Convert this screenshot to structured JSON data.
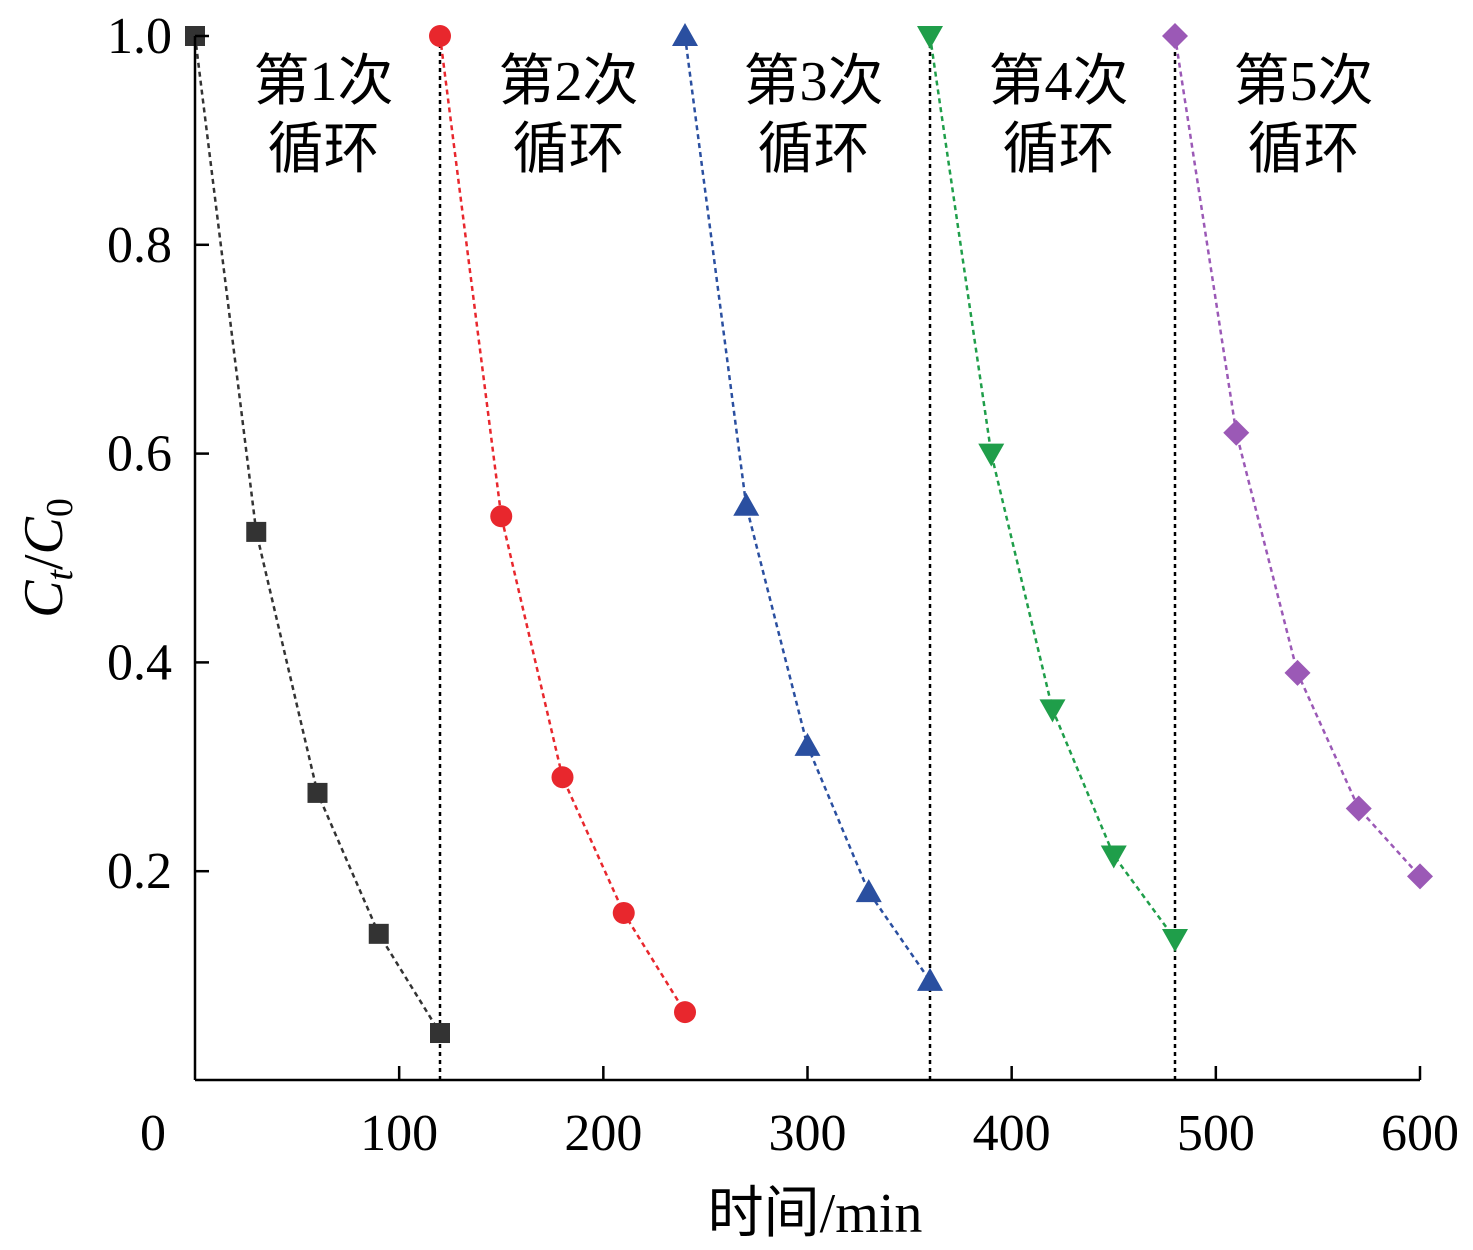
{
  "chart_data": {
    "type": "line",
    "title": "",
    "xlabel": "时间/min",
    "ylabel_main": "C",
    "ylabel_sub_t": "t",
    "ylabel_slash": "/",
    "ylabel_main2": "C",
    "ylabel_sub_0": "0",
    "xlim": [
      0,
      600
    ],
    "ylim": [
      0,
      1.0
    ],
    "x_ticks": [
      0,
      100,
      200,
      300,
      400,
      500,
      600
    ],
    "x_tick_labels": [
      "0",
      "100",
      "200",
      "300",
      "400",
      "500",
      "600"
    ],
    "y_ticks": [
      0.2,
      0.4,
      0.6,
      0.8,
      1.0
    ],
    "y_tick_labels": [
      "0.2",
      "0.4",
      "0.6",
      "0.8",
      "1.0"
    ],
    "dividers_x": [
      120,
      360,
      480
    ],
    "cycle_labels": [
      {
        "line1": "第1次",
        "line2": "循环",
        "x_center": 60
      },
      {
        "line1": "第2次",
        "line2": "循环",
        "x_center": 180
      },
      {
        "line1": "第3次",
        "line2": "循环",
        "x_center": 300
      },
      {
        "line1": "第4次",
        "line2": "循环",
        "x_center": 420
      },
      {
        "line1": "第5次",
        "line2": "循环",
        "x_center": 540
      }
    ],
    "series": [
      {
        "marker": "square",
        "color": "#333333",
        "x": [
          0,
          30,
          60,
          90,
          120
        ],
        "y": [
          1.0,
          0.525,
          0.275,
          0.14,
          0.045
        ]
      },
      {
        "marker": "circle",
        "color": "#e8272d",
        "x": [
          120,
          150,
          180,
          210,
          240
        ],
        "y": [
          1.0,
          0.54,
          0.29,
          0.16,
          0.065
        ]
      },
      {
        "marker": "triangle-up",
        "color": "#2a4fa0",
        "x": [
          240,
          270,
          300,
          330,
          360
        ],
        "y": [
          1.0,
          0.55,
          0.32,
          0.18,
          0.095
        ]
      },
      {
        "marker": "triangle-down",
        "color": "#1f9e4a",
        "x": [
          360,
          390,
          420,
          450,
          480
        ],
        "y": [
          1.0,
          0.6,
          0.355,
          0.215,
          0.135
        ]
      },
      {
        "marker": "diamond",
        "color": "#9b59b6",
        "x": [
          480,
          510,
          540,
          570,
          600
        ],
        "y": [
          1.0,
          0.62,
          0.39,
          0.26,
          0.195
        ]
      }
    ]
  }
}
